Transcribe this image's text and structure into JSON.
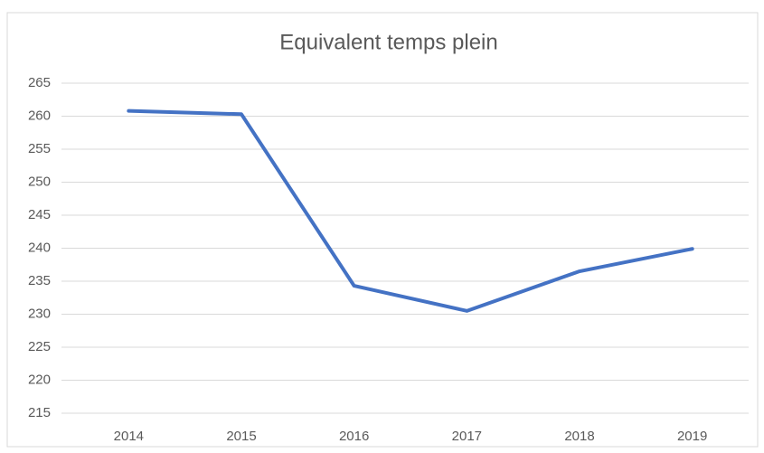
{
  "chart_data": {
    "type": "line",
    "title": "Equivalent temps plein",
    "categories": [
      "2014",
      "2015",
      "2016",
      "2017",
      "2018",
      "2019"
    ],
    "values": [
      260.8,
      260.3,
      234.3,
      230.5,
      236.5,
      239.9
    ],
    "color": "#4472c4",
    "ylim": [
      215,
      265
    ],
    "yticks": [
      215,
      220,
      225,
      230,
      235,
      240,
      245,
      250,
      255,
      260,
      265
    ],
    "grid": true
  }
}
